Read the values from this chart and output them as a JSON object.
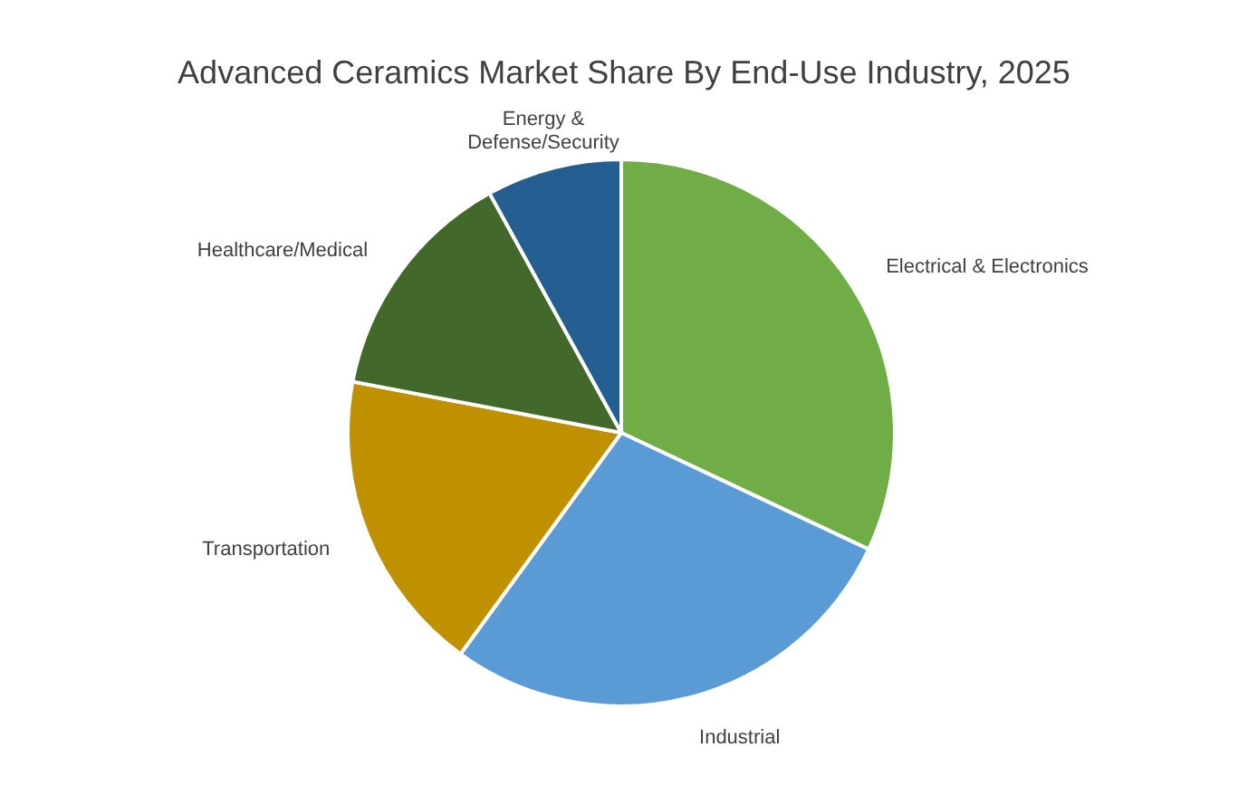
{
  "chart_data": {
    "type": "pie",
    "title": "Advanced Ceramics Market Share By End-Use Industry, 2025",
    "categories": [
      "Electrical & Electronics",
      "Industrial",
      "Transportation",
      "Healthcare/Medical",
      "Energy & Defense/Security"
    ],
    "values": [
      32,
      28,
      18,
      14,
      8
    ],
    "colors": [
      "#70ad47",
      "#5b9bd5",
      "#bf9000",
      "#43682b",
      "#255e91"
    ],
    "legend": false
  }
}
